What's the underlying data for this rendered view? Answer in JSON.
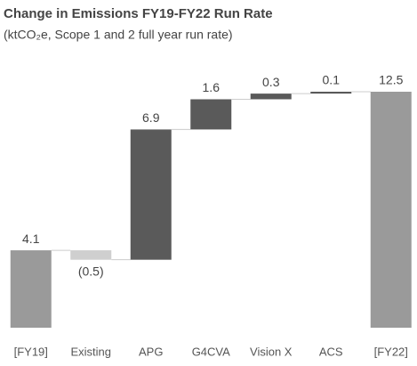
{
  "chart_data": {
    "type": "waterfall",
    "title": "Change in Emissions FY19-FY22 Run Rate",
    "subtitle": "(ktCO₂e, Scope 1 and 2 full year run rate)",
    "categories": [
      "[FY19]",
      "Existing",
      "APG",
      "G4CVA",
      "Vision X",
      "ACS",
      "[FY22]"
    ],
    "values": [
      4.1,
      -0.5,
      6.9,
      1.6,
      0.3,
      0.1,
      12.5
    ],
    "value_labels": [
      "4.1",
      "(0.5)",
      "6.9",
      "1.6",
      "0.3",
      "0.1",
      "12.5"
    ],
    "is_total": [
      true,
      false,
      false,
      false,
      false,
      false,
      true
    ],
    "colors": [
      "#9a9a9a",
      "#cfcfcf",
      "#5a5a5a",
      "#5a5a5a",
      "#5a5a5a",
      "#5a5a5a",
      "#9a9a9a"
    ],
    "ylim": [
      0,
      12.5
    ]
  }
}
